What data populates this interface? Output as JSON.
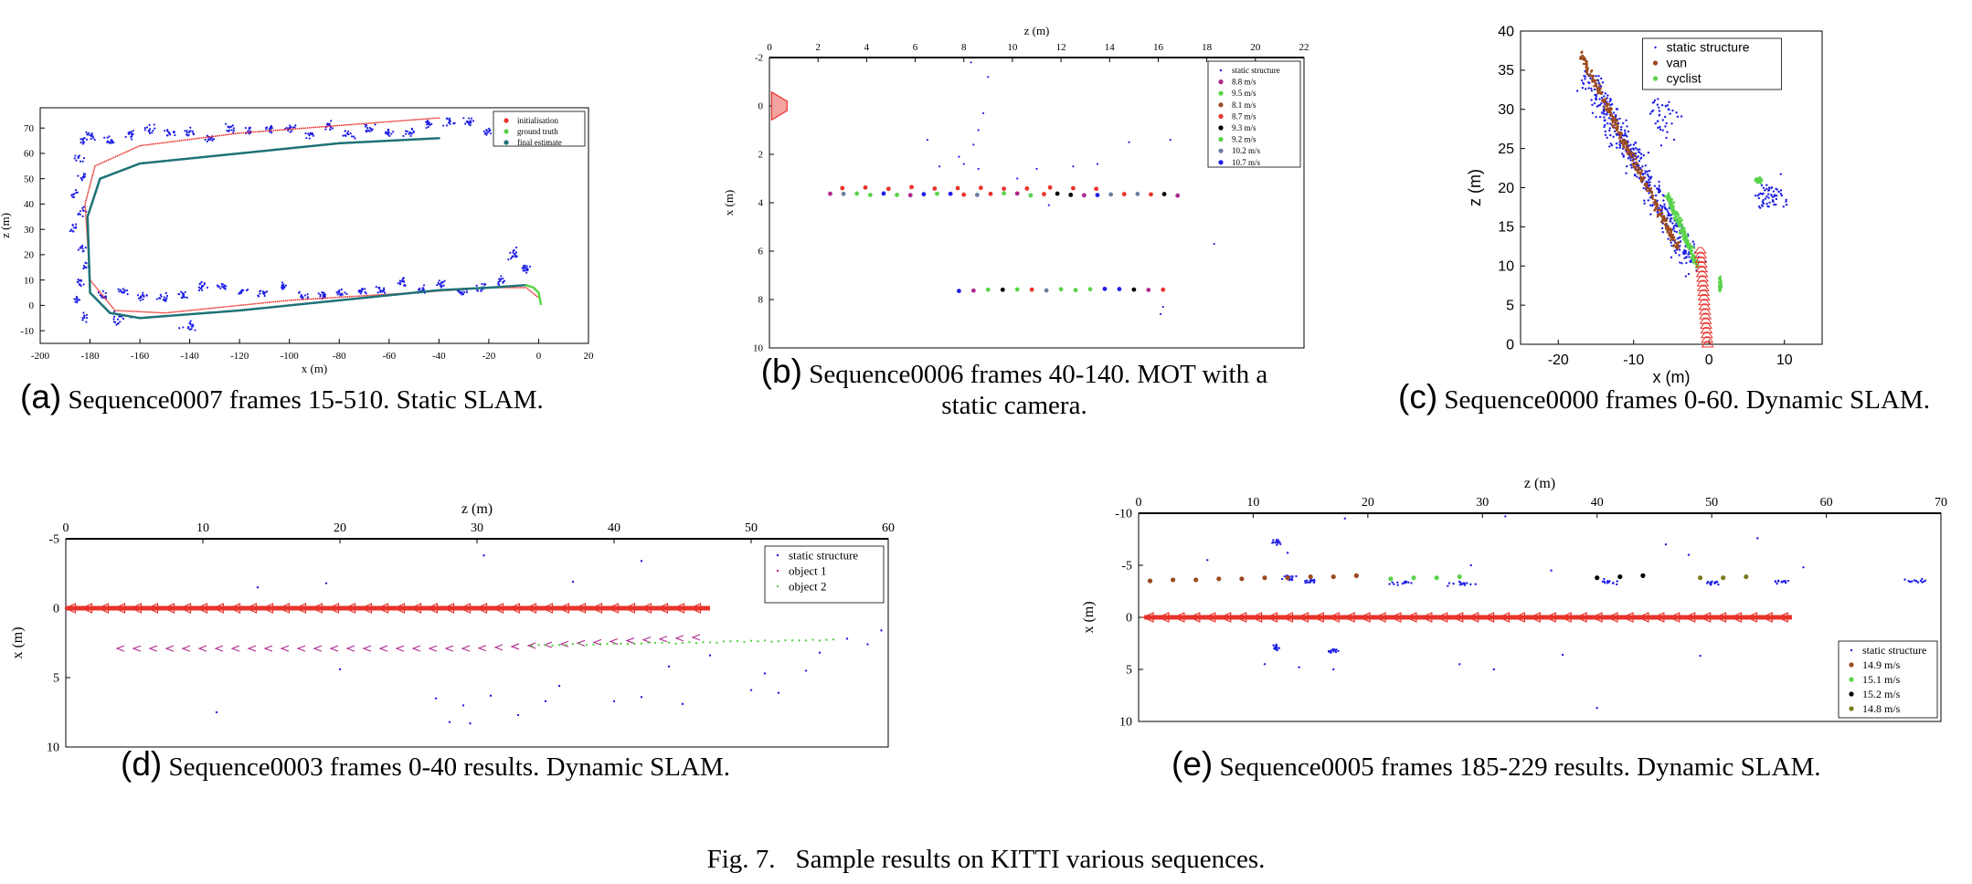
{
  "colors": {
    "static": "#1f1fe6",
    "camera": "#e8332b",
    "camera_fill": "#f4a3a0",
    "ground_truth": "#5ad34a",
    "final_estimate": "#1e7276",
    "initialisation": "#e8332b",
    "van": "#9c4a1f",
    "cyclist": "#5ad34a",
    "magenta": "#b0288e",
    "black": "#000000",
    "olive": "#7a7a1e",
    "grey_blue": "#6b7fa0"
  },
  "figure_caption": {
    "label": "Fig. 7.",
    "text": "Sample results on KITTI various sequences."
  },
  "chart_data": [
    {
      "id": "a",
      "type": "scatter",
      "caption_label": "(a)",
      "caption_text": "Sequence0007 frames 15-510. Static SLAM.",
      "xlabel": "x (m)",
      "ylabel": "z (m)",
      "xlim": [
        -200,
        20
      ],
      "ylim": [
        -15,
        78
      ],
      "xticks": [
        "-200",
        "-180",
        "-160",
        "-140",
        "-120",
        "-100",
        "-80",
        "-60",
        "-40",
        "-20",
        "0",
        "20"
      ],
      "yticks": [
        "-10",
        "0",
        "10",
        "20",
        "30",
        "40",
        "50",
        "60",
        "70"
      ],
      "legend": [
        "initialisation",
        "ground truth",
        "final estimate"
      ],
      "legend_position": "top-right",
      "series": [
        {
          "name": "initialisation",
          "x": [
            -40,
            -80,
            -120,
            -160,
            -178,
            -182,
            -180,
            -170,
            -150,
            -100,
            -50,
            -20,
            -5,
            0
          ],
          "y": [
            74,
            71,
            68,
            63,
            55,
            40,
            10,
            -2,
            -3,
            2,
            5,
            7,
            7,
            3
          ]
        },
        {
          "name": "ground truth",
          "x": [
            -5,
            -2,
            0,
            1
          ],
          "y": [
            8,
            7,
            5,
            0
          ]
        },
        {
          "name": "final estimate",
          "x": [
            -40,
            -80,
            -120,
            -160,
            -176,
            -181,
            -180,
            -172,
            -160,
            -120,
            -80,
            -40,
            -20,
            -5
          ],
          "y": [
            66,
            64,
            60,
            56,
            50,
            35,
            5,
            -3,
            -5,
            -2,
            2,
            6,
            7,
            8
          ]
        }
      ]
    },
    {
      "id": "b",
      "type": "scatter",
      "caption_label": "(b)",
      "caption_text_1": "Sequence0006 frames 40-140. MOT with a",
      "caption_text_2": "static camera.",
      "xlabel": "z (m)",
      "ylabel": "x (m)",
      "xlim": [
        0,
        22
      ],
      "ylim": [
        -2,
        10
      ],
      "xticks": [
        "0",
        "2",
        "4",
        "6",
        "8",
        "10",
        "12",
        "14",
        "16",
        "18",
        "20",
        "22"
      ],
      "yticks": [
        "-2",
        "0",
        "2",
        "4",
        "6",
        "8",
        "10"
      ],
      "legend": [
        "static structure",
        "8.8 m/s",
        "9.5 m/s",
        "8.1 m/s",
        "8.7 m/s",
        "9.3 m/s",
        "9.2 m/s",
        "10.2 m/s",
        "10.7 m/s"
      ],
      "legend_position": "top-right",
      "series": [
        {
          "name": "8.8 m/s",
          "x": [
            3,
            5,
            7,
            9,
            11,
            13,
            15
          ],
          "y": [
            3.7,
            3.6,
            3.7,
            3.6,
            3.7,
            3.6,
            3.5
          ]
        },
        {
          "name": "9.5 m/s",
          "x": [
            8,
            9,
            10,
            11,
            12,
            13,
            14,
            15,
            16
          ],
          "y": [
            7.8,
            7.7,
            7.7,
            7.6,
            7.7,
            7.6,
            7.6,
            7.5,
            7.6
          ]
        },
        {
          "name": "8.1 m/s",
          "x": [
            3,
            4,
            5,
            6,
            7,
            8,
            9,
            10,
            11,
            12,
            13,
            14
          ],
          "y": [
            3.4,
            3.4,
            3.5,
            3.5,
            3.4,
            3.4,
            3.5,
            3.5,
            3.4,
            3.4,
            3.3,
            3.3
          ]
        }
      ]
    },
    {
      "id": "c",
      "type": "scatter",
      "caption_label": "(c)",
      "caption_text": "Sequence0000 frames 0-60. Dynamic SLAM.",
      "xlabel": "x (m)",
      "ylabel": "z (m)",
      "xlim": [
        -25,
        15
      ],
      "ylim": [
        0,
        40
      ],
      "xticks": [
        "-20",
        "-10",
        "0",
        "10"
      ],
      "yticks": [
        "0",
        "5",
        "10",
        "15",
        "20",
        "25",
        "30",
        "35",
        "40"
      ],
      "legend": [
        "static structure",
        "van",
        "cyclist"
      ],
      "legend_position": "top-right",
      "series": [
        {
          "name": "van",
          "x": [
            -17,
            -16,
            -15,
            -13,
            -11,
            -9,
            -7,
            -5,
            -4
          ],
          "y": [
            37,
            34,
            30,
            26,
            24,
            21,
            18,
            15,
            12
          ]
        },
        {
          "name": "cyclist",
          "x": [
            -5,
            -4,
            -3,
            -2,
            1,
            2,
            6,
            7
          ],
          "y": [
            19,
            17,
            15,
            13,
            10,
            7,
            21,
            22
          ]
        }
      ]
    },
    {
      "id": "d",
      "type": "scatter",
      "caption_label": "(d)",
      "caption_text": "Sequence0003 frames 0-40 results. Dynamic SLAM.",
      "xlabel": "z (m)",
      "ylabel": "x (m)",
      "xlim": [
        0,
        60
      ],
      "ylim": [
        -5,
        10
      ],
      "xticks": [
        "0",
        "10",
        "20",
        "30",
        "40",
        "50",
        "60"
      ],
      "yticks": [
        "-5",
        "0",
        "5",
        "10"
      ],
      "legend": [
        "static structure",
        "object 1",
        "object 2"
      ],
      "legend_position": "top-right",
      "series": [
        {
          "name": "object 1",
          "x": [
            4,
            10,
            16,
            22,
            28,
            34,
            40,
            46
          ],
          "y": [
            2.9,
            2.9,
            2.8,
            2.8,
            2.7,
            2.6,
            2.4,
            2.1
          ]
        },
        {
          "name": "object 2",
          "x": [
            34,
            38,
            42,
            46,
            50,
            54,
            56
          ],
          "y": [
            3.0,
            2.9,
            2.9,
            2.8,
            2.7,
            2.6,
            2.5
          ]
        }
      ]
    },
    {
      "id": "e",
      "type": "scatter",
      "caption_label": "(e)",
      "caption_text": "Sequence0005 frames 185-229 results. Dynamic SLAM.",
      "xlabel": "z (m)",
      "ylabel": "x (m)",
      "xlim": [
        0,
        70
      ],
      "ylim": [
        -10,
        10
      ],
      "xticks": [
        "0",
        "10",
        "20",
        "30",
        "40",
        "50",
        "60",
        "70"
      ],
      "yticks": [
        "-10",
        "-5",
        "0",
        "5",
        "10"
      ],
      "legend": [
        "static structure",
        "14.9 m/s",
        "15.1 m/s",
        "15.2 m/s",
        "14.8 m/s"
      ],
      "legend_position": "bottom-right",
      "series": [
        {
          "name": "14.9 m/s",
          "x": [
            1,
            3,
            5,
            7,
            9,
            11,
            13,
            15,
            17,
            19
          ],
          "y": [
            -3.5,
            -3.6,
            -3.6,
            -3.7,
            -3.7,
            -3.8,
            -3.8,
            -3.9,
            -3.9,
            -4.0
          ]
        },
        {
          "name": "15.1 m/s",
          "x": [
            22,
            24,
            26,
            28
          ],
          "y": [
            -3.7,
            -3.8,
            -3.8,
            -3.9
          ]
        },
        {
          "name": "15.2 m/s",
          "x": [
            40,
            42,
            44
          ],
          "y": [
            -3.8,
            -3.9,
            -4.0
          ]
        },
        {
          "name": "14.8 m/s",
          "x": [
            49,
            51,
            53
          ],
          "y": [
            -3.8,
            -3.8,
            -3.9
          ]
        }
      ]
    }
  ]
}
